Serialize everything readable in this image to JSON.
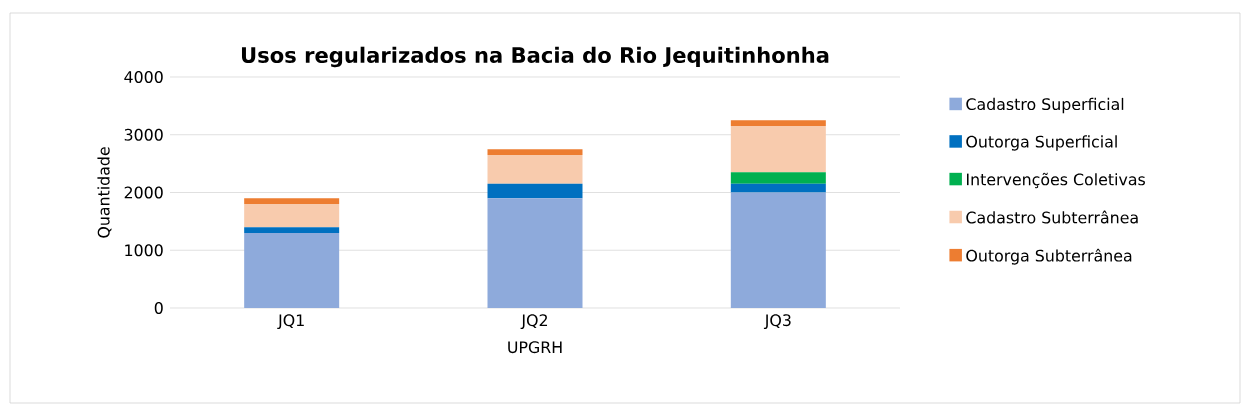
{
  "chart_data": {
    "type": "bar",
    "stacked": true,
    "title": "Usos regularizados na Bacia do Rio Jequitinhonha",
    "xlabel": "UPGRH",
    "ylabel": "Quantidade",
    "categories": [
      "JQ1",
      "JQ2",
      "JQ3"
    ],
    "series": [
      {
        "name": "Cadastro Superficial",
        "color": "#8eaadb",
        "values": [
          1300,
          1900,
          2000
        ]
      },
      {
        "name": "Outorga Superficial",
        "color": "#0070c0",
        "values": [
          100,
          250,
          150
        ]
      },
      {
        "name": "Intervenções Coletivas",
        "color": "#00b050",
        "values": [
          0,
          0,
          200
        ]
      },
      {
        "name": "Cadastro Subterrânea",
        "color": "#f8cbad",
        "values": [
          400,
          500,
          800
        ]
      },
      {
        "name": "Outorga Subterrânea",
        "color": "#ed7d31",
        "values": [
          100,
          100,
          100
        ]
      }
    ],
    "ylim": [
      0,
      4000
    ],
    "yticks": [
      0,
      1000,
      2000,
      3000,
      4000
    ],
    "grid": "y",
    "legend": "right"
  }
}
